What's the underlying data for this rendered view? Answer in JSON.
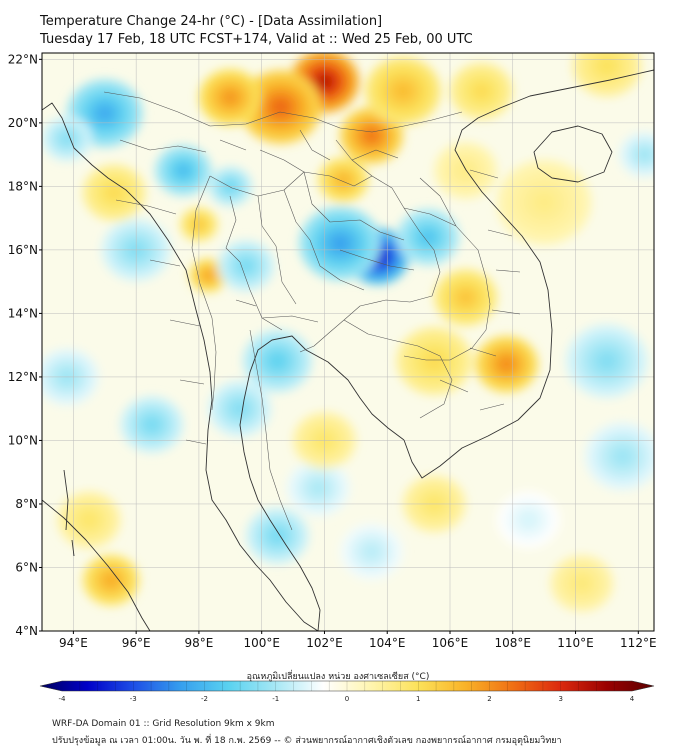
{
  "header": {
    "title": "Temperature Change 24-hr (°C) - [Data Assimilation]",
    "subtitle": "Tuesday 17 Feb, 18 UTC FCST+174, Valid at :: Wed 25 Feb, 00 UTC"
  },
  "map": {
    "lon_range": [
      93,
      112.5
    ],
    "lat_range": [
      4,
      22.2
    ],
    "lat_ticks": [
      "4°N",
      "6°N",
      "8°N",
      "10°N",
      "12°N",
      "14°N",
      "16°N",
      "18°N",
      "20°N",
      "22°N"
    ],
    "lat_values": [
      4,
      6,
      8,
      10,
      12,
      14,
      16,
      18,
      20,
      22
    ],
    "lon_ticks": [
      "94°E",
      "96°E",
      "98°E",
      "100°E",
      "102°E",
      "104°E",
      "106°E",
      "108°E",
      "110°E",
      "112°E"
    ],
    "lon_values": [
      94,
      96,
      98,
      100,
      102,
      104,
      106,
      108,
      110,
      112
    ],
    "anomalies": [
      {
        "lon": 102.0,
        "lat": 21.3,
        "val": 3.1,
        "r": 1.1
      },
      {
        "lon": 100.6,
        "lat": 20.5,
        "val": 2.2,
        "r": 1.3
      },
      {
        "lon": 99.0,
        "lat": 20.8,
        "val": 1.8,
        "r": 1.0
      },
      {
        "lon": 103.5,
        "lat": 19.6,
        "val": 2.1,
        "r": 1.0
      },
      {
        "lon": 102.6,
        "lat": 18.2,
        "val": 1.5,
        "r": 0.8
      },
      {
        "lon": 104.5,
        "lat": 21.0,
        "val": 1.4,
        "r": 1.2
      },
      {
        "lon": 98.3,
        "lat": 15.2,
        "val": 1.7,
        "r": 0.6
      },
      {
        "lon": 98.0,
        "lat": 16.8,
        "val": 1.3,
        "r": 0.6
      },
      {
        "lon": 95.3,
        "lat": 17.8,
        "val": 1.0,
        "r": 1.0
      },
      {
        "lon": 103.7,
        "lat": 15.8,
        "val": -3.4,
        "r": 1.0
      },
      {
        "lon": 102.5,
        "lat": 16.2,
        "val": -2.1,
        "r": 1.3
      },
      {
        "lon": 105.3,
        "lat": 16.4,
        "val": -1.7,
        "r": 1.0
      },
      {
        "lon": 95.0,
        "lat": 20.3,
        "val": -2.0,
        "r": 1.2
      },
      {
        "lon": 93.8,
        "lat": 19.5,
        "val": -1.2,
        "r": 0.8
      },
      {
        "lon": 97.5,
        "lat": 18.5,
        "val": -1.8,
        "r": 0.9
      },
      {
        "lon": 96.0,
        "lat": 16.0,
        "val": -1.2,
        "r": 1.1
      },
      {
        "lon": 99.0,
        "lat": 18.0,
        "val": -1.4,
        "r": 0.7
      },
      {
        "lon": 99.5,
        "lat": 15.5,
        "val": -1.3,
        "r": 0.9
      },
      {
        "lon": 100.5,
        "lat": 12.5,
        "val": -1.5,
        "r": 1.1
      },
      {
        "lon": 99.3,
        "lat": 11.0,
        "val": -1.2,
        "r": 1.0
      },
      {
        "lon": 96.5,
        "lat": 10.5,
        "val": -1.3,
        "r": 1.0
      },
      {
        "lon": 93.8,
        "lat": 12.0,
        "val": -1.0,
        "r": 1.0
      },
      {
        "lon": 100.5,
        "lat": 7.0,
        "val": -1.3,
        "r": 1.0
      },
      {
        "lon": 101.8,
        "lat": 8.5,
        "val": -0.9,
        "r": 1.0
      },
      {
        "lon": 103.5,
        "lat": 6.5,
        "val": -0.8,
        "r": 1.0
      },
      {
        "lon": 106.5,
        "lat": 14.5,
        "val": 1.3,
        "r": 1.0
      },
      {
        "lon": 107.8,
        "lat": 12.4,
        "val": 1.9,
        "r": 1.0
      },
      {
        "lon": 105.5,
        "lat": 12.5,
        "val": 1.0,
        "r": 1.2
      },
      {
        "lon": 102.0,
        "lat": 10.0,
        "val": 0.8,
        "r": 1.0
      },
      {
        "lon": 95.2,
        "lat": 5.6,
        "val": 1.6,
        "r": 0.9
      },
      {
        "lon": 94.5,
        "lat": 7.5,
        "val": 0.8,
        "r": 1.0
      },
      {
        "lon": 109.0,
        "lat": 17.5,
        "val": 0.6,
        "r": 1.5
      },
      {
        "lon": 111.0,
        "lat": 21.8,
        "val": 0.9,
        "r": 1.1
      },
      {
        "lon": 107.0,
        "lat": 21.0,
        "val": 1.0,
        "r": 1.0
      },
      {
        "lon": 111.0,
        "lat": 12.5,
        "val": -1.2,
        "r": 1.3
      },
      {
        "lon": 111.5,
        "lat": 9.5,
        "val": -1.0,
        "r": 1.2
      },
      {
        "lon": 108.5,
        "lat": 7.5,
        "val": -0.6,
        "r": 1.0
      },
      {
        "lon": 110.2,
        "lat": 5.5,
        "val": 0.7,
        "r": 1.0
      },
      {
        "lon": 105.5,
        "lat": 8.0,
        "val": 0.8,
        "r": 1.0
      },
      {
        "lon": 112.2,
        "lat": 19.0,
        "val": -1.0,
        "r": 0.8
      },
      {
        "lon": 106.5,
        "lat": 18.5,
        "val": 0.6,
        "r": 1.0
      }
    ]
  },
  "colorbar": {
    "label": "อุณหภูมิเปลี่ยนแปลง หน่วย องศาเซลเซียส (°C)",
    "min": -4,
    "max": 4,
    "ticks": [
      "-4",
      "-3",
      "-2",
      "-1",
      "0",
      "1",
      "2",
      "3",
      "4"
    ],
    "tick_values": [
      -4,
      -3,
      -2,
      -1,
      0,
      1,
      2,
      3,
      4
    ],
    "stops": [
      "#00005c",
      "#0000c8",
      "#1e50e6",
      "#37a0ee",
      "#5ad2f0",
      "#a8e8f5",
      "#ffffff",
      "#fff5b0",
      "#fce25a",
      "#f9b328",
      "#f07014",
      "#dc2a0e",
      "#9a0000",
      "#5a0000"
    ]
  },
  "footer": {
    "line1": "WRF-DA Domain 01 :: Grid Resolution 9km x 9km",
    "line2": "ปรับปรุงข้อมูล ณ เวลา 01:00น. วัน พ. ที่ 18 ก.พ. 2569 -- © ส่วนพยากรณ์อากาศเชิงตัวเลข กองพยากรณ์อากาศ กรมอุตุนิยมวิทยา",
    "colors": {
      "land_outline": "#333333",
      "province": "#555555",
      "grid": "#bbbbbb",
      "frame": "#000000"
    }
  }
}
